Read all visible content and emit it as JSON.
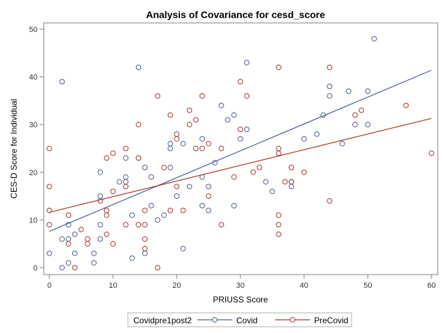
{
  "chart_data": {
    "type": "scatter",
    "title": "Analysis of Covariance for cesd_score",
    "xlabel": "PRIUSS Score",
    "ylabel": "CES-D Score for Individual",
    "xlim": [
      0,
      60
    ],
    "ylim": [
      0,
      50
    ],
    "xticks": [
      "0",
      "10",
      "20",
      "30",
      "40",
      "50",
      "60"
    ],
    "yticks": [
      "0",
      "10",
      "20",
      "30",
      "40",
      "50"
    ],
    "legend": {
      "title": "Covidpre1post2",
      "placement": "bottom"
    },
    "series": [
      {
        "name": "Covid",
        "color": "#4a5f8f",
        "marker": "open-circle",
        "fit_line": [
          [
            0,
            7.6
          ],
          [
            60,
            41.4
          ]
        ],
        "points": [
          [
            0,
            3
          ],
          [
            2,
            39
          ],
          [
            2,
            6
          ],
          [
            2,
            0
          ],
          [
            3,
            9
          ],
          [
            3,
            6
          ],
          [
            3,
            1
          ],
          [
            4,
            3
          ],
          [
            4,
            7
          ],
          [
            7,
            1
          ],
          [
            7,
            3
          ],
          [
            8,
            6
          ],
          [
            8,
            9
          ],
          [
            8,
            15
          ],
          [
            8,
            20
          ],
          [
            11,
            18
          ],
          [
            12,
            23
          ],
          [
            12,
            18
          ],
          [
            12,
            19
          ],
          [
            13,
            11
          ],
          [
            13,
            2
          ],
          [
            14,
            42
          ],
          [
            14,
            23
          ],
          [
            15,
            21
          ],
          [
            15,
            3
          ],
          [
            16,
            13
          ],
          [
            16,
            19
          ],
          [
            17,
            10
          ],
          [
            18,
            11
          ],
          [
            19,
            25
          ],
          [
            19,
            21
          ],
          [
            19,
            26
          ],
          [
            20,
            28
          ],
          [
            20,
            15
          ],
          [
            21,
            4
          ],
          [
            21,
            26
          ],
          [
            22,
            17
          ],
          [
            24,
            19
          ],
          [
            24,
            27
          ],
          [
            24,
            13
          ],
          [
            25,
            17
          ],
          [
            25,
            12
          ],
          [
            26,
            22
          ],
          [
            27,
            34
          ],
          [
            28,
            31
          ],
          [
            29,
            32
          ],
          [
            29,
            13
          ],
          [
            30,
            27
          ],
          [
            31,
            43
          ],
          [
            31,
            29
          ],
          [
            34,
            18
          ],
          [
            35,
            16
          ],
          [
            38,
            17
          ],
          [
            38,
            18
          ],
          [
            40,
            27
          ],
          [
            42,
            28
          ],
          [
            43,
            32
          ],
          [
            44,
            38
          ],
          [
            44,
            36
          ],
          [
            46,
            26
          ],
          [
            47,
            37
          ],
          [
            48,
            30
          ],
          [
            50,
            37
          ],
          [
            50,
            30
          ],
          [
            51,
            48
          ]
        ]
      },
      {
        "name": "PreCovid",
        "color": "#a33a2e",
        "marker": "open-circle",
        "fit_line": [
          [
            0,
            11.6
          ],
          [
            60,
            31.3
          ]
        ],
        "points": [
          [
            0,
            25
          ],
          [
            0,
            17
          ],
          [
            0,
            12
          ],
          [
            0,
            9
          ],
          [
            3,
            11
          ],
          [
            3,
            5
          ],
          [
            4,
            0
          ],
          [
            5,
            8
          ],
          [
            6,
            5
          ],
          [
            6,
            6
          ],
          [
            8,
            14
          ],
          [
            9,
            23
          ],
          [
            9,
            12
          ],
          [
            9,
            11
          ],
          [
            9,
            7
          ],
          [
            10,
            24
          ],
          [
            10,
            16
          ],
          [
            10,
            5
          ],
          [
            12,
            25
          ],
          [
            12,
            17
          ],
          [
            12,
            9
          ],
          [
            14,
            30
          ],
          [
            14,
            9
          ],
          [
            14,
            23
          ],
          [
            15,
            9
          ],
          [
            15,
            12
          ],
          [
            15,
            6
          ],
          [
            15,
            4
          ],
          [
            17,
            36
          ],
          [
            17,
            0
          ],
          [
            18,
            21
          ],
          [
            19,
            32
          ],
          [
            19,
            12
          ],
          [
            20,
            27
          ],
          [
            20,
            17
          ],
          [
            21,
            12
          ],
          [
            22,
            33
          ],
          [
            22,
            30
          ],
          [
            23,
            31
          ],
          [
            23,
            25
          ],
          [
            24,
            36
          ],
          [
            24,
            25
          ],
          [
            25,
            26
          ],
          [
            25,
            15
          ],
          [
            27,
            25
          ],
          [
            27,
            9
          ],
          [
            29,
            19
          ],
          [
            30,
            39
          ],
          [
            30,
            29
          ],
          [
            31,
            36
          ],
          [
            32,
            20
          ],
          [
            33,
            21
          ],
          [
            36,
            42
          ],
          [
            36,
            25
          ],
          [
            36,
            24
          ],
          [
            36,
            11
          ],
          [
            36,
            9
          ],
          [
            36,
            7
          ],
          [
            37,
            18
          ],
          [
            38,
            21
          ],
          [
            38,
            18
          ],
          [
            40,
            20
          ],
          [
            44,
            42
          ],
          [
            44,
            14
          ],
          [
            48,
            32
          ],
          [
            49,
            33
          ],
          [
            56,
            34
          ],
          [
            60,
            24
          ]
        ]
      }
    ]
  }
}
